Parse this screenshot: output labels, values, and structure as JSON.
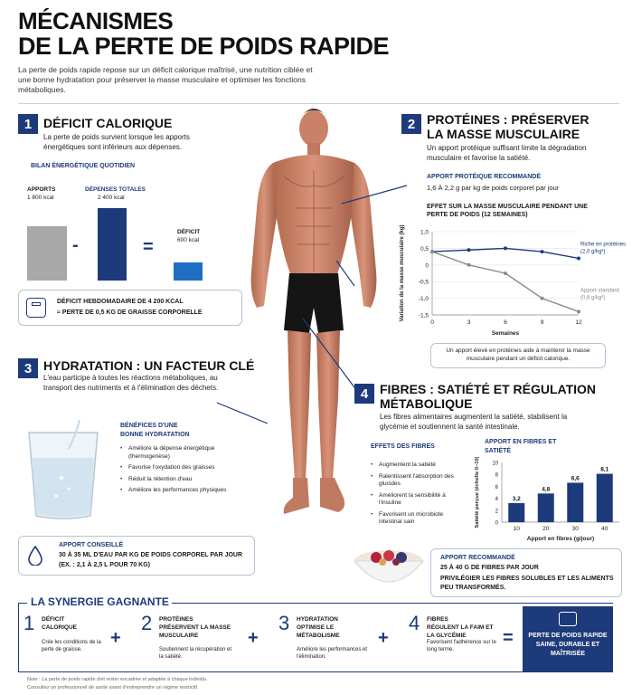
{
  "header": {
    "title_line1": "MÉCANISMES",
    "title_line2": "DE LA PERTE DE POIDS RAPIDE",
    "intro": "La perte de poids rapide repose sur un déficit calorique maîtrisé, une nutrition ciblée et une bonne hydratation pour préserver la masse musculaire et optimiser les fonctions métaboliques."
  },
  "sec1": {
    "num": "1",
    "title": "DÉFICIT CALORIQUE",
    "text": "La perte de poids survient lorsque les apports énergétiques sont inférieurs aux dépenses.",
    "chart_label": "BILAN ÉNERGÉTIQUE QUOTIDIEN",
    "apports_label": "APPORTS",
    "apports_value": "1 800 kcal",
    "depenses_label": "DÉPENSES TOTALES",
    "depenses_value": "2 400 kcal",
    "deficit_label": "DÉFICIT",
    "deficit_value": "600 kcal",
    "minus": "-",
    "equals": "=",
    "box_line1": "DÉFICIT HEBDOMADAIRE DE 4 200 KCAL",
    "box_line2": "≈ PERTE DE 0,5 KG DE GRAISSE CORPORELLE"
  },
  "sec2": {
    "num": "2",
    "title_line1": "PROTÉINES : PRÉSERVER",
    "title_line2": "LA MASSE MUSCULAIRE",
    "text": "Un apport protéique suffisant limite la dégradation musculaire et favorise la satiété.",
    "apport_label": "APPORT PROTÉIQUE RECOMMANDÉ",
    "apport_value": "1,6 À 2,2 g par kg de poids corporel par jour",
    "effect_title": "EFFET SUR LA MASSE MUSCULAIRE PENDANT UNE PERTE DE POIDS (12 SEMAINES)",
    "note": "Un apport élevé en protéines aide à maintenir la masse musculaire pendant un déficit calorique."
  },
  "sec3": {
    "num": "3",
    "title": "HYDRATATION : UN FACTEUR CLÉ",
    "text": "L'eau participe à toutes les réactions métaboliques, au transport des nutriments et à l'élimination des déchets.",
    "benefits_title": "BÉNÉFICES D'UNE BONNE HYDRATATION",
    "benefits": [
      "Améliore la dépense énergétique (thermogenèse)",
      "Favorise l'oxydation des graisses",
      "Réduit la rétention d'eau",
      "Améliore les performances physiques"
    ],
    "box_title": "APPORT CONSEILLÉ",
    "box_line1": "30 À 35 ML D'EAU PAR KG DE POIDS CORPOREL PAR JOUR",
    "box_line2": "(EX. : 2,1 À 2,5 L POUR 70 KG)"
  },
  "sec4": {
    "num": "4",
    "title_line1": "FIBRES : SATIÉTÉ ET RÉGULATION",
    "title_line2": "MÉTABOLIQUE",
    "text": "Les fibres alimentaires augmentent la satiété, stabilisent la glycémie et soutiennent la santé intestinale.",
    "effects_title": "EFFETS DES FIBRES",
    "effects": [
      "Augmentent la satiété",
      "Ralentissent l'absorption des glucides",
      "Améliorent la sensibilité à l'insuline",
      "Favorisent un microbiote intestinal sain"
    ],
    "chart_title": "APPORT EN FIBRES ET SATIÉTÉ",
    "box_title": "APPORT RECOMMANDÉ",
    "box_line1": "25 À 40 G DE FIBRES PAR JOUR",
    "box_line2": "PRIVILÉGIER LES FIBRES SOLUBLES ET LES ALIMENTS PEU TRANSFORMÉS."
  },
  "synergy": {
    "title": "LA SYNERGIE GAGNANTE",
    "items": [
      {
        "num": "1",
        "head1": "DÉFICIT",
        "head2": "CALORIQUE",
        "desc": "Crée les conditions de la perte de graisse."
      },
      {
        "num": "2",
        "head1": "PROTÉINES",
        "head2": "PRÉSERVENT LA MASSE MUSCULAIRE",
        "desc": "Soutiennent la récupération et la satiété."
      },
      {
        "num": "3",
        "head1": "HYDRATATION",
        "head2": "OPTIMISE LE MÉTABOLISME",
        "desc": "Améliore les performances et l'élimination."
      },
      {
        "num": "4",
        "head1": "FIBRES",
        "head2": "RÉGULENT LA FAIM ET LA GLYCÉMIE",
        "desc": "Favorisent l'adhérence sur le long terme."
      }
    ],
    "plus": "+",
    "equals": "=",
    "result": "PERTE DE POIDS RAPIDE SAINE, DURABLE ET MAÎTRISÉE"
  },
  "footer": {
    "note1": "Note : La perte de poids rapide doit rester encadrée et adaptée à chaque individu.",
    "note2": "Consultez un professionnel de santé avant d'entreprendre un régime restrictif."
  },
  "colors": {
    "navy": "#1d3a7a",
    "blue": "#1e6fc2",
    "gray": "#a8a8a8"
  },
  "chart_data": [
    {
      "type": "bar",
      "title": "BILAN ÉNERGÉTIQUE QUOTIDIEN",
      "categories": [
        "APPORTS",
        "DÉPENSES TOTALES",
        "DÉFICIT"
      ],
      "values": [
        1800,
        2400,
        600
      ],
      "unit": "kcal"
    },
    {
      "type": "line",
      "title": "EFFET SUR LA MASSE MUSCULAIRE PENDANT UNE PERTE DE POIDS (12 SEMAINES)",
      "xlabel": "Semaines",
      "ylabel": "Variation de la masse musculaire (kg)",
      "x": [
        0,
        3,
        6,
        9,
        12
      ],
      "xticks": [
        "0",
        "3",
        "6",
        "9",
        "12"
      ],
      "yticks": [
        "1,0",
        "0,5",
        "0",
        "-0,5",
        "-1,0",
        "-1,5"
      ],
      "ylim": [
        -1.5,
        1.0
      ],
      "series": [
        {
          "name": "Riche en protéines (2,0 g/kg²)",
          "values": [
            0.4,
            0.45,
            0.5,
            0.4,
            0.2
          ]
        },
        {
          "name": "Apport standard (0,8 g/kg²)",
          "values": [
            0.4,
            0.0,
            -0.25,
            -1.0,
            -1.4
          ]
        }
      ]
    },
    {
      "type": "bar",
      "title": "APPORT EN FIBRES ET SATIÉTÉ",
      "xlabel": "Apport en fibres (g/jour)",
      "ylabel": "Satiété perçue (échelle 0–10)",
      "categories": [
        "10",
        "20",
        "30",
        "40"
      ],
      "values": [
        3.2,
        4.8,
        6.6,
        8.1
      ],
      "labels": [
        "3,2",
        "4,8",
        "6,6",
        "8,1"
      ],
      "yticks": [
        "0",
        "2",
        "4",
        "6",
        "8",
        "10"
      ],
      "ylim": [
        0,
        10
      ]
    }
  ]
}
